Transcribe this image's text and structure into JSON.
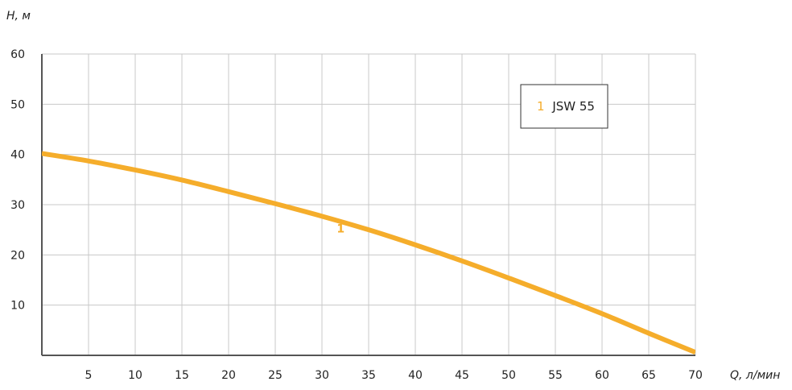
{
  "chart_data": {
    "type": "line",
    "ylabel": "H, м",
    "xlabel": "Q, л/мин",
    "xlim": [
      0,
      70
    ],
    "ylim": [
      0,
      60
    ],
    "x_ticks": [
      5,
      10,
      15,
      20,
      25,
      30,
      35,
      40,
      45,
      50,
      55,
      60,
      65,
      70
    ],
    "y_ticks": [
      10,
      20,
      30,
      40,
      50,
      60
    ],
    "grid": true,
    "legend_position": "top-right",
    "series": [
      {
        "name": "JSW 55",
        "label": "1",
        "color": "#f5ad2b",
        "x": [
          0,
          5,
          10,
          15,
          20,
          25,
          30,
          35,
          40,
          45,
          50,
          55,
          60,
          65,
          70
        ],
        "y": [
          40.2,
          38.7,
          36.9,
          34.9,
          32.6,
          30.2,
          27.7,
          25.0,
          22.0,
          18.8,
          15.4,
          11.9,
          8.3,
          4.4,
          0.6
        ]
      }
    ],
    "curve_labels": [
      {
        "text": "1",
        "x": 32,
        "y": 24.5
      }
    ]
  }
}
